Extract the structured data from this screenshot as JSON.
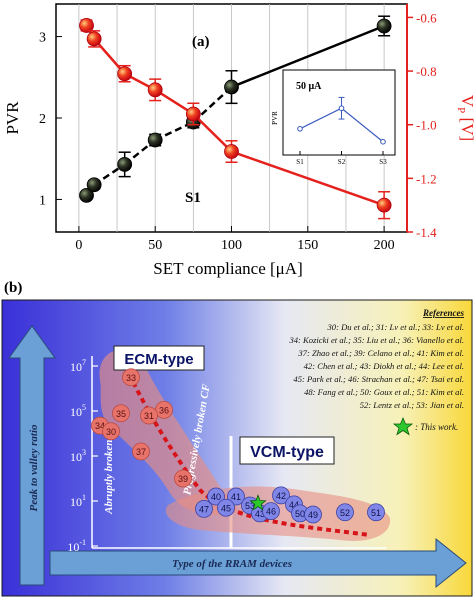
{
  "chart_data": [
    {
      "type": "line",
      "panel_label": "(a)",
      "annotation": "S1",
      "xlabel": "SET compliance [μA]",
      "ylabel_left": "PVR",
      "ylabel_right_main": "V",
      "ylabel_right_sub": "P",
      "ylabel_right_unit": " [V]",
      "xlim": [
        -15,
        215
      ],
      "ylim_left": [
        0.6,
        3.4
      ],
      "ylim_right": [
        -1.4,
        -0.55
      ],
      "x_ticks": [
        "0",
        "50",
        "100",
        "150",
        "200"
      ],
      "x_tick_values": [
        0,
        50,
        100,
        150,
        200
      ],
      "x_gridlines": [
        0,
        25,
        50,
        75,
        100,
        125,
        150,
        175,
        200
      ],
      "y_left_ticks": [
        "1",
        "2",
        "3"
      ],
      "y_left_tick_values": [
        1,
        2,
        3
      ],
      "y_right_ticks": [
        "-0.6",
        "-0.8",
        "-1.0",
        "-1.2",
        "-1.4"
      ],
      "y_right_tick_values": [
        -0.6,
        -0.8,
        -1.0,
        -1.2,
        -1.4
      ],
      "series": [
        {
          "axis": "left",
          "color": "#000000",
          "x": [
            5,
            10,
            30,
            50,
            75,
            100,
            200
          ],
          "y": [
            1.05,
            1.18,
            1.43,
            1.73,
            1.95,
            2.38,
            3.13
          ],
          "err": [
            0.03,
            0.05,
            0.15,
            0.07,
            0.07,
            0.2,
            0.12
          ]
        },
        {
          "axis": "right",
          "color": "#e4211c",
          "x": [
            5,
            10,
            30,
            50,
            75,
            100,
            200
          ],
          "y": [
            -0.63,
            -0.68,
            -0.81,
            -0.87,
            -0.96,
            -1.1,
            -1.3
          ],
          "err": [
            0.02,
            0.03,
            0.03,
            0.04,
            0.04,
            0.04,
            0.05
          ]
        }
      ],
      "inset": {
        "title": "50 μA",
        "ylabel": "PVR",
        "categories": [
          "S1",
          "S2",
          "S3"
        ],
        "values": [
          1.2,
          3.1,
          0.0
        ],
        "err": [
          0.0,
          1.0,
          0.0
        ],
        "ylim": [
          -0.3,
          4.6
        ],
        "color": "#3b5bbf"
      }
    },
    {
      "type": "scatter",
      "panel_label": "(b)",
      "xlabel": "Type of the RRAM devices",
      "ylabel": "Peak to valley ratio",
      "y_scale": "log",
      "ylim": [
        0.1,
        10000000
      ],
      "y_tick_bases": [
        "10",
        "10",
        "10",
        "10",
        "10"
      ],
      "y_tick_exps": [
        "-1",
        "1",
        "3",
        "5",
        "7"
      ],
      "y_tick_values": [
        0.1,
        10,
        1000,
        100000,
        10000000
      ],
      "region_labels": [
        "ECM-type",
        "VCM-type"
      ],
      "curve_labels": [
        "Abruptly broken CF",
        "Progressively broken CF"
      ],
      "references_title": "References",
      "references": [
        "30: Du et al.; 31: Lv et al.; 33: Lv et al.",
        "34: Kozicki et al.; 35: Liu et al.; 36: Vianello et al.",
        "37: Zhao et al.; 39: Celano et al.; 41: Kim et al.",
        "42: Chen et al.; 43: Diokh et al.; 44: Lee et al.",
        "45: Park et al.; 46: Strachan et al.; 47: Tsai et al.",
        "48: Fang et al.; 50: Goux et al.; 51: Kim et al.",
        "52: Lentz et al.; 53: Jian et al."
      ],
      "this_work_label": ": This work.",
      "ecm_points": [
        {
          "label": "33",
          "log_pvr": 6.5
        },
        {
          "label": "35",
          "log_pvr": 4.9
        },
        {
          "label": "36",
          "log_pvr": 5.05
        },
        {
          "label": "31",
          "log_pvr": 4.8
        },
        {
          "label": "34",
          "log_pvr": 4.35
        },
        {
          "label": "30",
          "log_pvr": 4.1
        },
        {
          "label": "37",
          "log_pvr": 3.2
        },
        {
          "label": "39",
          "log_pvr": 2.0
        }
      ],
      "vcm_points": [
        {
          "label": "40",
          "log_pvr": 1.2
        },
        {
          "label": "41",
          "log_pvr": 1.2
        },
        {
          "label": "45",
          "log_pvr": 0.7
        },
        {
          "label": "47",
          "log_pvr": 0.65
        },
        {
          "label": "42",
          "log_pvr": 1.25
        },
        {
          "label": "53",
          "log_pvr": 0.8
        },
        {
          "label": "43",
          "log_pvr": 0.45
        },
        {
          "label": "46",
          "log_pvr": 0.55
        },
        {
          "label": "44",
          "log_pvr": 0.85
        },
        {
          "label": "50",
          "log_pvr": 0.45
        },
        {
          "label": "49",
          "log_pvr": 0.4
        },
        {
          "label": "52",
          "log_pvr": 0.5
        },
        {
          "label": "51",
          "log_pvr": 0.5
        }
      ],
      "this_work": {
        "log_pvr": 0.9
      },
      "colors": {
        "ecm": "#e8736a",
        "vcm": "#7f86e8",
        "trend": "#d8141b",
        "star": "#2ec82e"
      }
    }
  ]
}
